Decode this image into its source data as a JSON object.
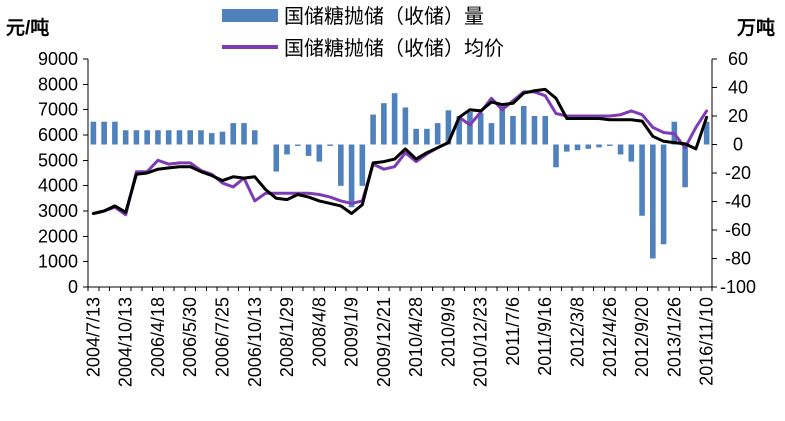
{
  "chart_data": {
    "type": "bar",
    "categories": [
      "2004/7/13",
      "",
      "",
      "2004/10/13",
      "",
      "",
      "2006/4/18",
      "",
      "",
      "2006/5/30",
      "",
      "",
      "2006/7/25",
      "",
      "",
      "2006/10/13",
      "",
      "",
      "2008/1/29",
      "",
      "",
      "2008/4/8",
      "",
      "",
      "2009/1/9",
      "",
      "",
      "2009/12/21",
      "",
      "",
      "2010/4/28",
      "",
      "",
      "2010/9/9",
      "",
      "",
      "2010/12/23",
      "",
      "",
      "2011/7/6",
      "",
      "",
      "2011/9/16",
      "",
      "",
      "2012/3/8",
      "",
      "",
      "2012/4/26",
      "",
      "",
      "2012/9/20",
      "",
      "",
      "2013/1/26",
      "",
      "",
      "2016/11/10"
    ],
    "y_left": {
      "label": "元/吨",
      "ylim": [
        0,
        9000
      ],
      "ticks": [
        0,
        1000,
        2000,
        3000,
        4000,
        5000,
        6000,
        7000,
        8000,
        9000
      ]
    },
    "y_right": {
      "label": "万吨",
      "ylim": [
        -100,
        60
      ],
      "ticks": [
        -100,
        -80,
        -60,
        -40,
        -20,
        0,
        20,
        40,
        60
      ]
    },
    "grid": false,
    "legend_position": "top",
    "series": [
      {
        "name": "国储糖抛储（收储）量",
        "type": "bar",
        "axis": "right",
        "color": "#4F81BD",
        "values": [
          16,
          16,
          16,
          10,
          10,
          10,
          10,
          10,
          10,
          10,
          10,
          8,
          9,
          15,
          15,
          10,
          0,
          -19,
          -7,
          -1,
          -8,
          -12,
          -1,
          -29,
          -44,
          -29,
          21,
          29,
          36,
          26,
          11,
          11,
          15,
          24,
          20,
          23,
          22,
          15,
          27,
          20,
          27,
          20,
          20,
          -16,
          -5,
          -4,
          -3,
          -2,
          -1,
          -7,
          -12,
          -50,
          -80,
          -70,
          16,
          -30,
          0,
          16
        ]
      },
      {
        "name": "国储糖抛储（收储）均价",
        "type": "line",
        "axis": "left",
        "color": "#7D3CB5",
        "values": [
          2900,
          3000,
          3150,
          2850,
          4550,
          4550,
          5000,
          4850,
          4900,
          4900,
          4600,
          4450,
          4100,
          3950,
          4300,
          3400,
          3700,
          3700,
          3700,
          3700,
          3700,
          3650,
          3550,
          3400,
          3300,
          3400,
          4850,
          4650,
          4750,
          5300,
          4950,
          5250,
          5500,
          5700,
          6700,
          6400,
          6900,
          7450,
          7000,
          7350,
          7700,
          7700,
          7550,
          6850,
          6750,
          6750,
          6750,
          6750,
          6750,
          6800,
          6950,
          6800,
          6300,
          6100,
          6050,
          5500,
          6300,
          6950
        ]
      },
      {
        "type": "line",
        "axis": "left",
        "color": "#000000",
        "values": [
          2900,
          3000,
          3200,
          2950,
          4450,
          4500,
          4650,
          4700,
          4750,
          4750,
          4550,
          4400,
          4200,
          4350,
          4300,
          4350,
          3850,
          3500,
          3450,
          3650,
          3550,
          3400,
          3300,
          3200,
          2900,
          3250,
          4900,
          4950,
          5050,
          5450,
          5050,
          5300,
          5500,
          5700,
          6700,
          7000,
          6950,
          7300,
          7200,
          7250,
          7650,
          7750,
          7800,
          7450,
          6650,
          6650,
          6650,
          6650,
          6600,
          6600,
          6600,
          6550,
          5950,
          5750,
          5700,
          5650,
          5450,
          6700
        ]
      }
    ]
  }
}
